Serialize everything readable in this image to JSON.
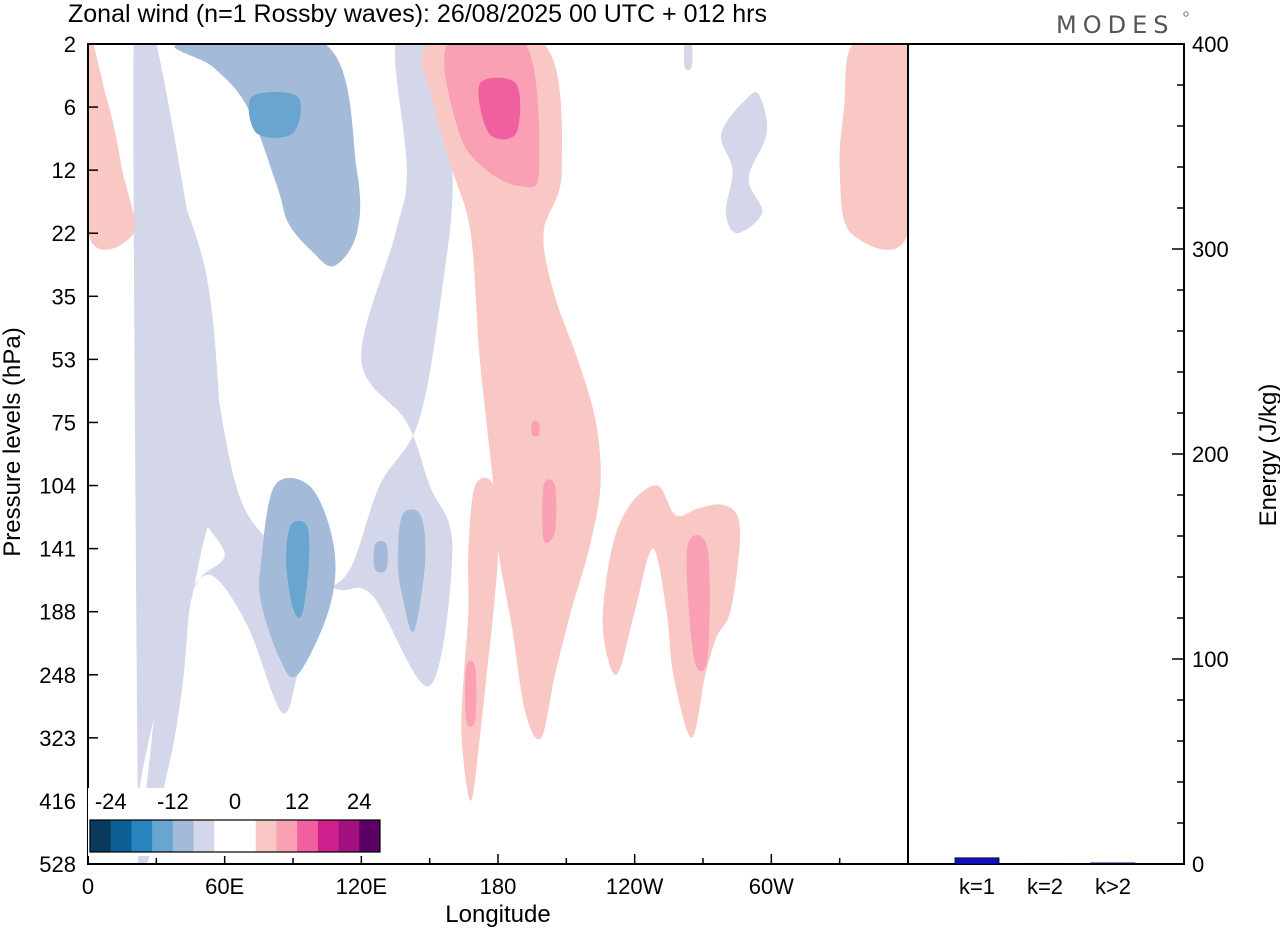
{
  "chart_data": [
    {
      "type": "heatmap",
      "title": "Zonal wind (n=1 Rossby waves):  26/08/2025  00 UTC  + 012 hrs",
      "xlabel": "Longitude",
      "ylabel": "Pressure levels (hPa)",
      "x_ticks": [
        "0",
        "60E",
        "120E",
        "180",
        "120W",
        "60W"
      ],
      "x_range_deg_east": [
        0,
        360
      ],
      "y_ticks": [
        "2",
        "6",
        "12",
        "22",
        "35",
        "53",
        "75",
        "104",
        "141",
        "188",
        "248",
        "323",
        "416",
        "528"
      ],
      "colorbar": {
        "labels": [
          "-24",
          "-12",
          "0",
          "12",
          "24"
        ],
        "colors": [
          "#0a3a5e",
          "#0b5f95",
          "#2a84c0",
          "#68a6cf",
          "#a3bad9",
          "#d4d6ea",
          "#ffffff",
          "#ffffff",
          "#f9c8c4",
          "#f9a0b4",
          "#f060a0",
          "#d0208e",
          "#a0107e",
          "#5a0064"
        ]
      },
      "regions": [
        {
          "level": -1,
          "points": [
            [
              22,
              2
            ],
            [
              30,
              2
            ],
            [
              50,
              35
            ],
            [
              65,
              104
            ],
            [
              82,
              141
            ],
            [
              90,
              160
            ],
            [
              110,
              170
            ],
            [
              125,
              175
            ],
            [
              150,
              260
            ],
            [
              160,
              140
            ],
            [
              150,
              104
            ],
            [
              140,
              75
            ],
            [
              120,
              53
            ],
            [
              135,
              22
            ],
            [
              140,
              12
            ],
            [
              135,
              2
            ],
            [
              150,
              2
            ],
            [
              160,
              12
            ],
            [
              155,
              35
            ],
            [
              145,
              75
            ],
            [
              128,
              104
            ],
            [
              115,
              155
            ],
            [
              100,
              180
            ],
            [
              92,
              248
            ],
            [
              85,
              290
            ],
            [
              70,
              200
            ],
            [
              55,
              160
            ],
            [
              44,
              170
            ],
            [
              30,
              190
            ],
            [
              22,
              230
            ],
            [
              30,
              248
            ],
            [
              28,
              323
            ],
            [
              25,
              416
            ],
            [
              22,
              528
            ],
            [
              26,
              528
            ],
            [
              32,
              416
            ],
            [
              38,
              323
            ],
            [
              42,
              248
            ],
            [
              45,
              180
            ],
            [
              50,
              160
            ],
            [
              60,
              145
            ],
            [
              50,
              120
            ],
            [
              40,
              85
            ],
            [
              32,
              53
            ],
            [
              28,
              22
            ]
          ]
        },
        {
          "level": -1,
          "points": [
            [
              20,
              2
            ],
            [
              25,
              2
            ],
            [
              35,
              10
            ],
            [
              52,
              30
            ],
            [
              58,
              75
            ],
            [
              57,
              104
            ],
            [
              50,
              141
            ],
            [
              44,
              188
            ],
            [
              34,
              248
            ],
            [
              27,
              323
            ],
            [
              22,
              416
            ],
            [
              22,
              528
            ],
            [
              22,
              528
            ]
          ]
        },
        {
          "level": -2,
          "points": [
            [
              40,
              2
            ],
            [
              104,
              2
            ],
            [
              118,
              12
            ],
            [
              118,
              22
            ],
            [
              108,
              28
            ],
            [
              98,
              25
            ],
            [
              88,
              20
            ],
            [
              83,
              14
            ],
            [
              70,
              6
            ],
            [
              55,
              3
            ]
          ]
        },
        {
          "level": -3,
          "points": [
            [
              72,
              5
            ],
            [
              92,
              5
            ],
            [
              90,
              8
            ],
            [
              74,
              8
            ]
          ]
        },
        {
          "level": -2,
          "points": [
            [
              82,
              104
            ],
            [
              98,
              105
            ],
            [
              108,
              140
            ],
            [
              106,
              185
            ],
            [
              92,
              248
            ],
            [
              84,
              230
            ],
            [
              76,
              180
            ],
            [
              76,
              150
            ]
          ]
        },
        {
          "level": -3,
          "points": [
            [
              89,
              126
            ],
            [
              96,
              126
            ],
            [
              97,
              150
            ],
            [
              94,
              190
            ],
            [
              90,
              185
            ],
            [
              87,
              150
            ]
          ]
        },
        {
          "level": -2,
          "points": [
            [
              138,
              120
            ],
            [
              146,
              120
            ],
            [
              148,
              150
            ],
            [
              143,
              205
            ],
            [
              138,
              175
            ],
            [
              136,
              150
            ]
          ]
        },
        {
          "level": -2,
          "points": [
            [
              126,
              138
            ],
            [
              131,
              138
            ],
            [
              131,
              155
            ],
            [
              126,
              155
            ]
          ]
        },
        {
          "level": -1,
          "points": [
            [
              36,
              116
            ],
            [
              42,
              116
            ],
            [
              41,
              135
            ],
            [
              37,
              135
            ]
          ]
        },
        {
          "level": -1,
          "points": [
            [
              290,
              5
            ],
            [
              295,
              5
            ],
            [
              298,
              8
            ],
            [
              290,
              13
            ],
            [
              296,
              18
            ],
            [
              285,
              22
            ],
            [
              280,
              18
            ],
            [
              283,
              12
            ],
            [
              278,
              8
            ]
          ]
        },
        {
          "level": -1,
          "points": [
            [
              262,
              2
            ],
            [
              265,
              2
            ],
            [
              265,
              3
            ],
            [
              262,
              3
            ]
          ]
        },
        {
          "level": 1,
          "points": [
            [
              150,
              2
            ],
            [
              200,
              2
            ],
            [
              208,
              12
            ],
            [
              200,
              22
            ],
            [
              205,
              35
            ],
            [
              215,
              53
            ],
            [
              223,
              75
            ],
            [
              225,
              104
            ],
            [
              220,
              141
            ],
            [
              212,
              188
            ],
            [
              205,
              248
            ],
            [
              199,
              323
            ],
            [
              192,
              290
            ],
            [
              186,
              200
            ],
            [
              180,
              141
            ],
            [
              178,
              104
            ],
            [
              172,
              53
            ],
            [
              168,
              22
            ],
            [
              160,
              12
            ],
            [
              152,
              6
            ]
          ]
        },
        {
          "level": 1,
          "points": [
            [
              170,
              104
            ],
            [
              178,
              104
            ],
            [
              180,
              141
            ],
            [
              178,
              188
            ],
            [
              175,
              248
            ],
            [
              172,
              323
            ],
            [
              168,
              416
            ],
            [
              164,
              323
            ],
            [
              165,
              248
            ],
            [
              167,
              188
            ],
            [
              167,
              141
            ]
          ]
        },
        {
          "level": 1,
          "points": [
            [
              230,
              141
            ],
            [
              238,
              114
            ],
            [
              250,
              104
            ],
            [
              258,
              120
            ],
            [
              268,
              116
            ],
            [
              278,
              114
            ],
            [
              285,
              120
            ],
            [
              286,
              141
            ],
            [
              282,
              188
            ],
            [
              276,
              210
            ],
            [
              271,
              248
            ],
            [
              265,
              323
            ],
            [
              257,
              248
            ],
            [
              254,
              188
            ],
            [
              248,
              141
            ],
            [
              240,
              188
            ],
            [
              232,
              248
            ],
            [
              226,
              200
            ]
          ]
        },
        {
          "level": 1,
          "points": [
            [
              0,
              2
            ],
            [
              8,
              5
            ],
            [
              12,
              8
            ],
            [
              15,
              12
            ],
            [
              20,
              22
            ],
            [
              0,
              22
            ]
          ]
        },
        {
          "level": 1,
          "points": [
            [
              336,
              2
            ],
            [
              360,
              2
            ],
            [
              360,
              22
            ],
            [
              335,
              22
            ],
            [
              330,
              12
            ],
            [
              332,
              6
            ]
          ]
        },
        {
          "level": 2,
          "points": [
            [
              158,
              2
            ],
            [
              192,
              2
            ],
            [
              198,
              12
            ],
            [
              190,
              14
            ],
            [
              175,
              12
            ],
            [
              163,
              8
            ]
          ]
        },
        {
          "level": 3,
          "points": [
            [
              172,
              4
            ],
            [
              188,
              4
            ],
            [
              188,
              8
            ],
            [
              176,
              8
            ]
          ]
        },
        {
          "level": 2,
          "points": [
            [
              200,
              104
            ],
            [
              205,
              104
            ],
            [
              205,
              130
            ],
            [
              200,
              135
            ]
          ]
        },
        {
          "level": 2,
          "points": [
            [
              166,
              240
            ],
            [
              170,
              240
            ],
            [
              170,
              300
            ],
            [
              166,
              300
            ]
          ]
        },
        {
          "level": 2,
          "points": [
            [
              263,
              141
            ],
            [
              272,
              141
            ],
            [
              272,
              230
            ],
            [
              266,
              230
            ]
          ]
        },
        {
          "level": 2,
          "points": [
            [
              195,
              75
            ],
            [
              198,
              75
            ],
            [
              198,
              80
            ],
            [
              195,
              80
            ]
          ]
        }
      ]
    },
    {
      "type": "bar",
      "ylabel": "Energy (J/kg)",
      "ylim": [
        0,
        400
      ],
      "y_ticks": [
        "0",
        "100",
        "200",
        "300",
        "400"
      ],
      "categories": [
        "k=1",
        "k=2",
        "k>2"
      ],
      "values": [
        3,
        0.3,
        0.5
      ],
      "bar_color": "#1010cc"
    }
  ],
  "logo": "MODES"
}
